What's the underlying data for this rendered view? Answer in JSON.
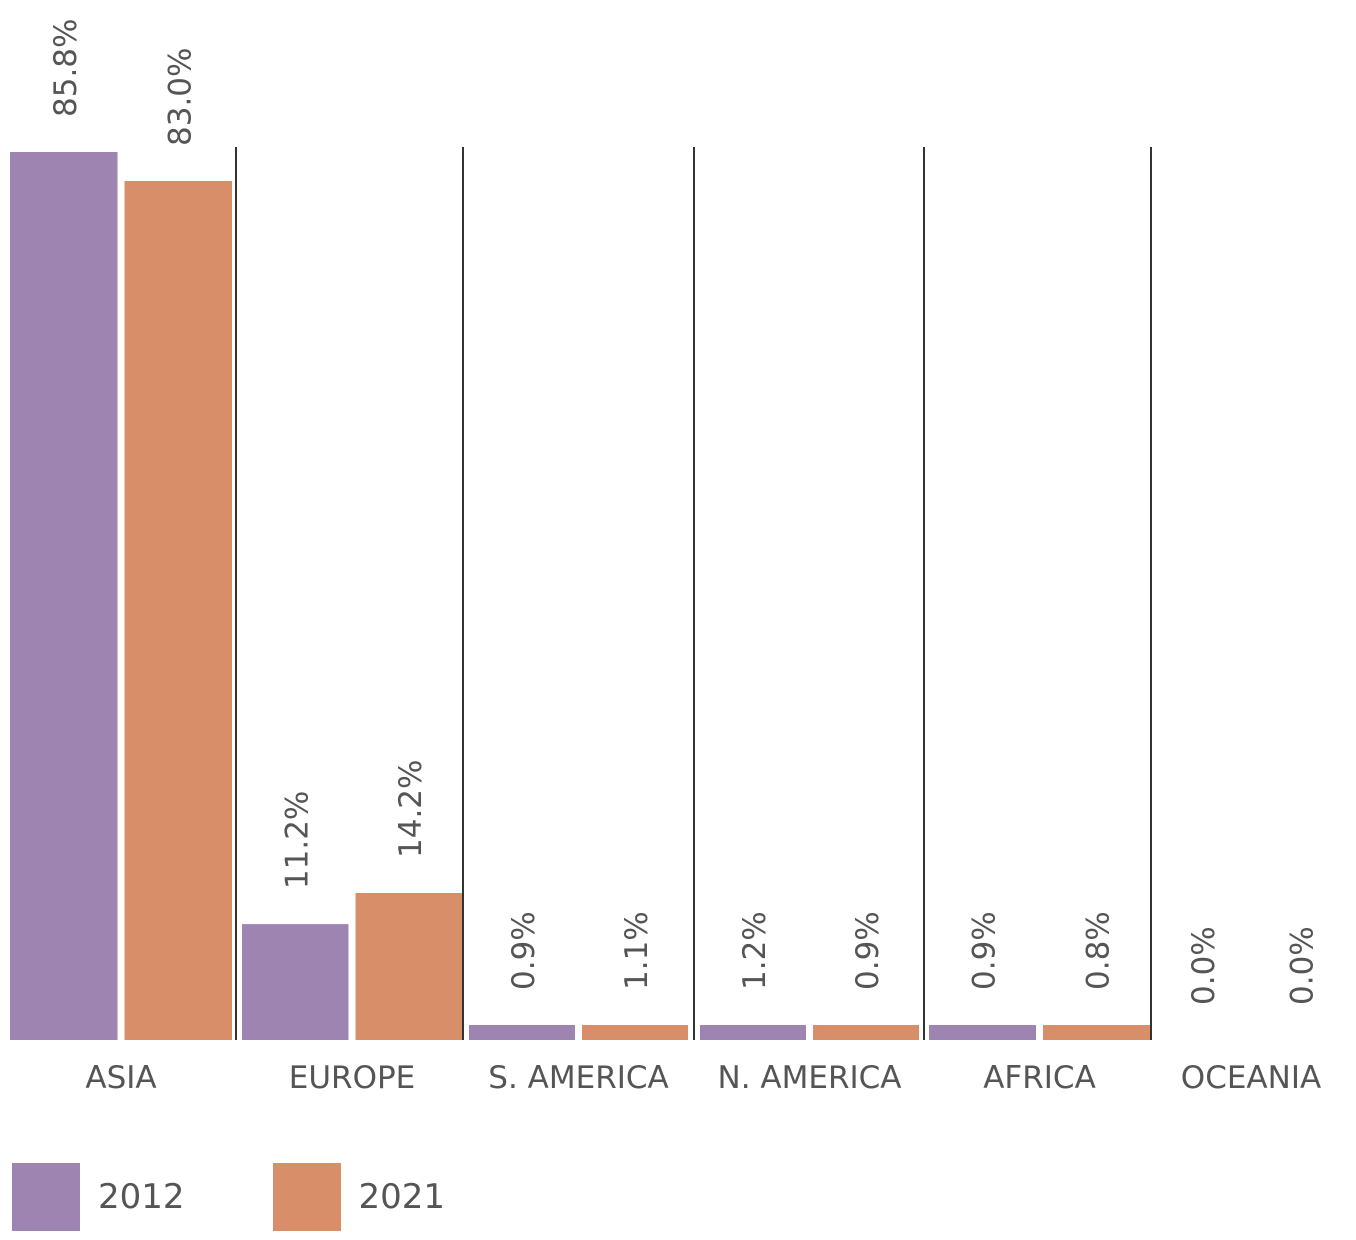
{
  "chart_data": {
    "type": "bar",
    "categories": [
      "ASIA",
      "EUROPE",
      "S. AMERICA",
      "N. AMERICA",
      "AFRICA",
      "OCEANIA"
    ],
    "series": [
      {
        "name": "2012",
        "color": "#9e84b0",
        "values": [
          85.8,
          11.2,
          0.9,
          1.2,
          0.9,
          0.0
        ],
        "labels": [
          "85.8%",
          "11.2%",
          "0.9%",
          "1.2%",
          "0.9%",
          "0.0%"
        ]
      },
      {
        "name": "2021",
        "color": "#d88f69",
        "values": [
          83.0,
          14.2,
          1.1,
          0.9,
          0.8,
          0.0
        ],
        "labels": [
          "83.0%",
          "14.2%",
          "1.1%",
          "0.9%",
          "0.8%",
          "0.0%"
        ]
      }
    ],
    "unit": "%",
    "ylim": [
      0,
      85.8
    ],
    "grid": false,
    "group_separators": true,
    "data_labels": "rotated-vertical",
    "legend_position": "bottom-left"
  }
}
